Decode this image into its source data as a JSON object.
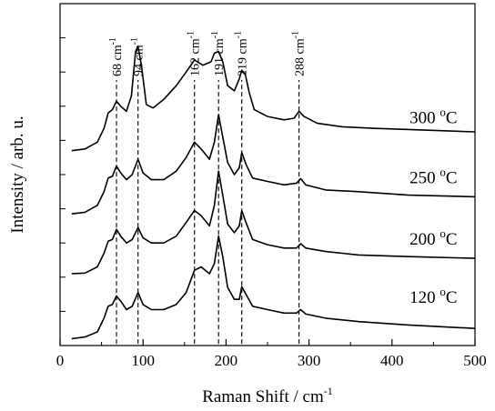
{
  "chart_data": {
    "type": "line",
    "title": "",
    "xlabel": "Raman Shift / cm",
    "xlabel_sup": "-1",
    "ylabel": "Intensity / arb. u.",
    "xlim": [
      0,
      500
    ],
    "ylim": [
      0,
      10
    ],
    "xticks": [
      0,
      100,
      200,
      300,
      400,
      500
    ],
    "yticks_labeled": false,
    "grid": false,
    "legend": "none",
    "peak_markers": [
      {
        "x": 68,
        "label": "68 cm",
        "sup": "-1"
      },
      {
        "x": 94,
        "label": "94 cm",
        "sup": "-1"
      },
      {
        "x": 162,
        "label": "162 cm",
        "sup": "-1"
      },
      {
        "x": 191,
        "label": "191 cm",
        "sup": "-1"
      },
      {
        "x": 219,
        "label": "219 cm",
        "sup": "-1"
      },
      {
        "x": 288,
        "label": "288 cm",
        "sup": "-1"
      }
    ],
    "series": [
      {
        "name": "120 oC",
        "label_main": "120 ",
        "label_sup": "o",
        "label_end": "C",
        "label_at": [
          450,
          1.25
        ],
        "points": [
          [
            14,
            0.2
          ],
          [
            30,
            0.25
          ],
          [
            45,
            0.4
          ],
          [
            53,
            0.8
          ],
          [
            58,
            1.15
          ],
          [
            63,
            1.2
          ],
          [
            68,
            1.45
          ],
          [
            73,
            1.3
          ],
          [
            80,
            1.05
          ],
          [
            87,
            1.15
          ],
          [
            94,
            1.55
          ],
          [
            100,
            1.2
          ],
          [
            110,
            1.05
          ],
          [
            125,
            1.05
          ],
          [
            140,
            1.2
          ],
          [
            152,
            1.55
          ],
          [
            162,
            2.2
          ],
          [
            170,
            2.3
          ],
          [
            180,
            2.1
          ],
          [
            186,
            2.4
          ],
          [
            191,
            3.2
          ],
          [
            196,
            2.6
          ],
          [
            202,
            1.7
          ],
          [
            210,
            1.35
          ],
          [
            216,
            1.35
          ],
          [
            219,
            1.72
          ],
          [
            224,
            1.5
          ],
          [
            232,
            1.15
          ],
          [
            250,
            1.05
          ],
          [
            270,
            0.95
          ],
          [
            285,
            0.95
          ],
          [
            290,
            1.05
          ],
          [
            296,
            0.92
          ],
          [
            320,
            0.8
          ],
          [
            360,
            0.7
          ],
          [
            420,
            0.6
          ],
          [
            500,
            0.5
          ]
        ]
      },
      {
        "name": "200 oC",
        "label_main": "200 ",
        "label_sup": "o",
        "label_end": "C",
        "label_at": [
          450,
          2.95
        ],
        "points": [
          [
            14,
            2.1
          ],
          [
            30,
            2.12
          ],
          [
            45,
            2.3
          ],
          [
            53,
            2.7
          ],
          [
            58,
            3.05
          ],
          [
            63,
            3.1
          ],
          [
            68,
            3.4
          ],
          [
            73,
            3.2
          ],
          [
            80,
            3.0
          ],
          [
            87,
            3.1
          ],
          [
            94,
            3.45
          ],
          [
            100,
            3.15
          ],
          [
            110,
            3.0
          ],
          [
            125,
            3.0
          ],
          [
            140,
            3.2
          ],
          [
            152,
            3.6
          ],
          [
            162,
            3.95
          ],
          [
            170,
            3.8
          ],
          [
            180,
            3.5
          ],
          [
            186,
            4.1
          ],
          [
            191,
            5.1
          ],
          [
            196,
            4.4
          ],
          [
            202,
            3.55
          ],
          [
            210,
            3.3
          ],
          [
            216,
            3.5
          ],
          [
            219,
            3.95
          ],
          [
            224,
            3.6
          ],
          [
            232,
            3.1
          ],
          [
            250,
            2.95
          ],
          [
            270,
            2.85
          ],
          [
            285,
            2.85
          ],
          [
            290,
            2.98
          ],
          [
            296,
            2.85
          ],
          [
            320,
            2.75
          ],
          [
            360,
            2.65
          ],
          [
            420,
            2.6
          ],
          [
            500,
            2.55
          ]
        ]
      },
      {
        "name": "250 oC",
        "label_main": "250 ",
        "label_sup": "o",
        "label_end": "C",
        "label_at": [
          450,
          4.75
        ],
        "points": [
          [
            14,
            3.85
          ],
          [
            30,
            3.9
          ],
          [
            45,
            4.1
          ],
          [
            53,
            4.5
          ],
          [
            58,
            4.9
          ],
          [
            63,
            4.95
          ],
          [
            68,
            5.25
          ],
          [
            73,
            5.05
          ],
          [
            80,
            4.85
          ],
          [
            87,
            5.0
          ],
          [
            94,
            5.45
          ],
          [
            100,
            5.05
          ],
          [
            110,
            4.85
          ],
          [
            125,
            4.85
          ],
          [
            140,
            5.1
          ],
          [
            152,
            5.5
          ],
          [
            162,
            5.95
          ],
          [
            170,
            5.75
          ],
          [
            180,
            5.45
          ],
          [
            186,
            5.95
          ],
          [
            191,
            6.75
          ],
          [
            196,
            6.1
          ],
          [
            202,
            5.35
          ],
          [
            210,
            5.0
          ],
          [
            216,
            5.2
          ],
          [
            219,
            5.65
          ],
          [
            224,
            5.3
          ],
          [
            232,
            4.9
          ],
          [
            250,
            4.8
          ],
          [
            270,
            4.7
          ],
          [
            285,
            4.75
          ],
          [
            290,
            4.88
          ],
          [
            296,
            4.7
          ],
          [
            320,
            4.55
          ],
          [
            360,
            4.5
          ],
          [
            420,
            4.4
          ],
          [
            500,
            4.35
          ]
        ]
      },
      {
        "name": "300 oC",
        "label_main": "300 ",
        "label_sup": "o",
        "label_end": "C",
        "label_at": [
          450,
          6.5
        ],
        "points": [
          [
            14,
            5.7
          ],
          [
            30,
            5.75
          ],
          [
            45,
            5.95
          ],
          [
            53,
            6.35
          ],
          [
            58,
            6.8
          ],
          [
            63,
            6.9
          ],
          [
            68,
            7.15
          ],
          [
            73,
            7.0
          ],
          [
            80,
            6.85
          ],
          [
            86,
            7.3
          ],
          [
            91,
            8.6
          ],
          [
            94,
            8.75
          ],
          [
            98,
            8.2
          ],
          [
            104,
            7.05
          ],
          [
            112,
            6.95
          ],
          [
            125,
            7.2
          ],
          [
            140,
            7.6
          ],
          [
            152,
            8.0
          ],
          [
            162,
            8.35
          ],
          [
            172,
            8.2
          ],
          [
            182,
            8.3
          ],
          [
            186,
            8.55
          ],
          [
            191,
            8.6
          ],
          [
            196,
            8.3
          ],
          [
            202,
            7.6
          ],
          [
            210,
            7.45
          ],
          [
            216,
            7.8
          ],
          [
            219,
            8.05
          ],
          [
            223,
            7.95
          ],
          [
            228,
            7.4
          ],
          [
            234,
            6.9
          ],
          [
            250,
            6.7
          ],
          [
            270,
            6.6
          ],
          [
            282,
            6.65
          ],
          [
            288,
            6.85
          ],
          [
            294,
            6.7
          ],
          [
            310,
            6.5
          ],
          [
            340,
            6.4
          ],
          [
            380,
            6.35
          ],
          [
            440,
            6.3
          ],
          [
            500,
            6.25
          ]
        ]
      }
    ]
  }
}
